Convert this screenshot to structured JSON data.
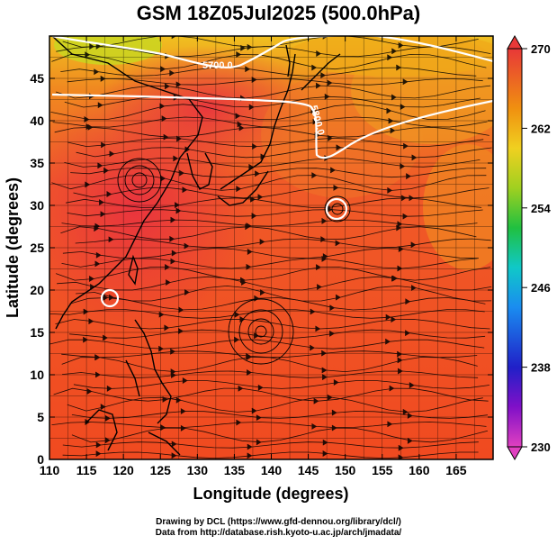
{
  "title": "GSM 18Z05Jul2025 (500.0hPa)",
  "xaxis": {
    "label": "Longitude (degrees)",
    "ticks": [
      "110",
      "115",
      "120",
      "125",
      "130",
      "135",
      "140",
      "145",
      "150",
      "155",
      "160",
      "165"
    ],
    "range": [
      110,
      170
    ]
  },
  "yaxis": {
    "label": "Latitude  (degrees)",
    "ticks": [
      "0",
      "5",
      "10",
      "15",
      "20",
      "25",
      "30",
      "35",
      "40",
      "45"
    ],
    "range": [
      0,
      50
    ]
  },
  "colorbar": {
    "ticks": [
      "230",
      "238",
      "246",
      "254",
      "262",
      "270"
    ],
    "range": [
      230,
      270
    ],
    "colors": [
      "#e040c0",
      "#5a10c8",
      "#1020c8",
      "#1a8cf0",
      "#10c8d8",
      "#10c880",
      "#30b030",
      "#a0d020",
      "#f0d020",
      "#f09010",
      "#f05020",
      "#e83838"
    ]
  },
  "contours": [
    {
      "label": "5700.0"
    },
    {
      "label": "5800.0"
    }
  ],
  "credit": {
    "line1": "Drawing by DCL (https://www.gfd-dennou.org/library/dcl/)",
    "line2": "Data from http://database.rish.kyoto-u.ac.jp/arch/jmadata/"
  }
}
